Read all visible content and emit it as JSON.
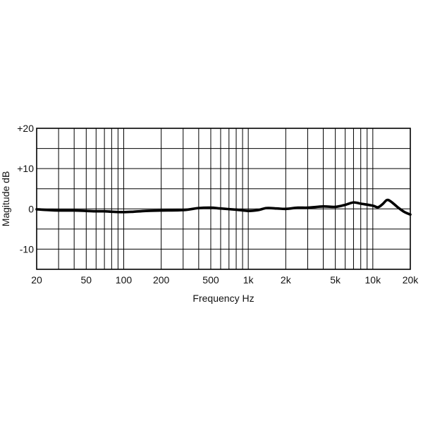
{
  "chart_data": {
    "type": "line",
    "title": "",
    "xlabel": "Frequency Hz",
    "ylabel": "Magitude dB",
    "x_scale": "log",
    "xlim": [
      20,
      20000
    ],
    "ylim": [
      -15,
      20
    ],
    "grid": true,
    "x_ticks": [
      20,
      50,
      100,
      200,
      500,
      1000,
      2000,
      5000,
      10000,
      20000
    ],
    "x_tick_labels": [
      "20",
      "50",
      "100",
      "200",
      "500",
      "1k",
      "2k",
      "5k",
      "10k",
      "20k"
    ],
    "y_ticks": [
      20,
      10,
      0,
      -10
    ],
    "y_tick_labels": [
      "+20",
      "+10",
      "0",
      "-10"
    ],
    "series": [
      {
        "x": [
          20,
          25,
          30,
          40,
          50,
          60,
          70,
          80,
          100,
          120,
          150,
          200,
          300,
          400,
          500,
          600,
          800,
          1000,
          1200,
          1400,
          1700,
          2000,
          2500,
          3000,
          4000,
          5000,
          6000,
          7000,
          8000,
          10000,
          11000,
          12000,
          13000,
          14000,
          16000,
          18000,
          20000
        ],
        "values": [
          -0.1,
          -0.3,
          -0.4,
          -0.4,
          -0.5,
          -0.6,
          -0.6,
          -0.7,
          -0.8,
          -0.7,
          -0.5,
          -0.4,
          -0.3,
          0.2,
          0.3,
          0.1,
          -0.2,
          -0.5,
          -0.3,
          0.2,
          0.1,
          0.0,
          0.3,
          0.3,
          0.6,
          0.5,
          1.0,
          1.6,
          1.3,
          0.8,
          0.4,
          1.2,
          2.2,
          1.8,
          0.3,
          -0.8,
          -1.4
        ]
      }
    ]
  }
}
